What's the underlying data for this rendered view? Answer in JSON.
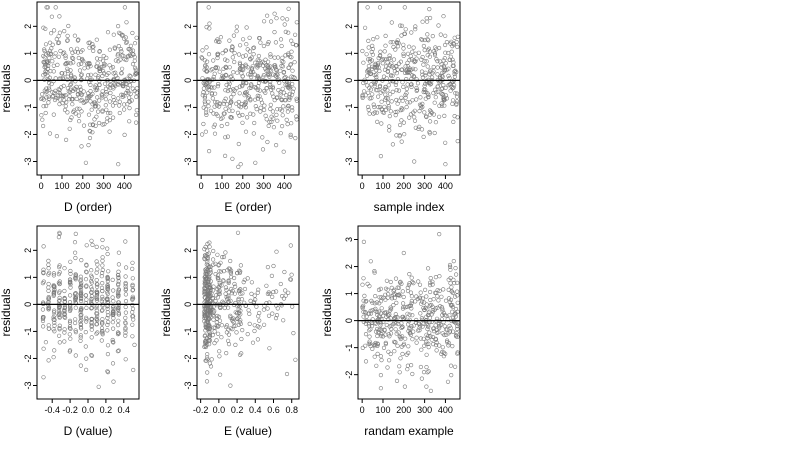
{
  "chart_data": [
    {
      "type": "scatter",
      "title": "",
      "xlabel": "D (order)",
      "ylabel": "residuals",
      "xlim": [
        -20,
        470
      ],
      "ylim": [
        -3.5,
        2.9
      ],
      "xticks": [
        0,
        100,
        200,
        300,
        400
      ],
      "yticks": [
        -3,
        -2,
        -1,
        0,
        1,
        2
      ],
      "xtick_labels": [
        "0",
        "100",
        "200",
        "300",
        "400"
      ],
      "ytick_labels": [
        "-3",
        "-2",
        "-1",
        "0",
        "1",
        "2"
      ],
      "reference_line": 0,
      "n": 460,
      "seed": 11,
      "pattern": "wave",
      "highlight": [
        [
          70,
          2.7
        ],
        [
          410,
          2.15
        ],
        [
          215,
          -3.05
        ],
        [
          370,
          -3.1
        ],
        [
          120,
          -2.2
        ]
      ]
    },
    {
      "type": "scatter",
      "title": "",
      "xlabel": "E (order)",
      "ylabel": "residuals",
      "xlim": [
        -20,
        470
      ],
      "ylim": [
        -3.5,
        2.9
      ],
      "xticks": [
        0,
        100,
        200,
        300,
        400
      ],
      "yticks": [
        -3,
        -2,
        -1,
        0,
        1,
        2
      ],
      "xtick_labels": [
        "0",
        "100",
        "200",
        "300",
        "400"
      ],
      "ytick_labels": [
        "-3",
        "-2",
        "-1",
        "0",
        "1",
        "2"
      ],
      "reference_line": 0,
      "n": 460,
      "seed": 23,
      "pattern": "uniform",
      "highlight": [
        [
          420,
          2.65
        ],
        [
          150,
          -2.9
        ],
        [
          190,
          -3.1
        ],
        [
          260,
          -3.05
        ],
        [
          40,
          2.1
        ]
      ]
    },
    {
      "type": "scatter",
      "title": "",
      "xlabel": "sample index",
      "ylabel": "residuals",
      "xlim": [
        -20,
        470
      ],
      "ylim": [
        -3.5,
        2.9
      ],
      "xticks": [
        0,
        100,
        200,
        300,
        400
      ],
      "yticks": [
        -3,
        -2,
        -1,
        0,
        1,
        2
      ],
      "xtick_labels": [
        "0",
        "100",
        "200",
        "300",
        "400"
      ],
      "ytick_labels": [
        "-3",
        "-2",
        "-1",
        "0",
        "1",
        "2"
      ],
      "reference_line": 0,
      "n": 460,
      "seed": 37,
      "pattern": "uniform",
      "highlight": [
        [
          205,
          2.7
        ],
        [
          400,
          -3.1
        ],
        [
          90,
          -2.8
        ],
        [
          310,
          2.3
        ],
        [
          250,
          -3.0
        ]
      ]
    },
    {
      "type": "scatter",
      "title": "",
      "xlabel": "D (value)",
      "ylabel": "residuals",
      "xlim": [
        -0.57,
        0.57
      ],
      "ylim": [
        -3.5,
        2.9
      ],
      "xticks": [
        -0.4,
        -0.2,
        0.0,
        0.2,
        0.4
      ],
      "yticks": [
        -3,
        -2,
        -1,
        0,
        1,
        2
      ],
      "xtick_labels": [
        "-0.4",
        "-0.2",
        "0.0",
        "0.2",
        "0.4"
      ],
      "ytick_labels": [
        "-3",
        "-2",
        "-1",
        "0",
        "1",
        "2"
      ],
      "reference_line": 0,
      "n": 460,
      "seed": 53,
      "pattern": "columns",
      "highlight": [
        [
          -0.32,
          2.65
        ],
        [
          0.12,
          -3.05
        ],
        [
          0.05,
          2.2
        ],
        [
          -0.47,
          -1.4
        ],
        [
          0.52,
          -1.5
        ]
      ]
    },
    {
      "type": "scatter",
      "title": "",
      "xlabel": "E (value)",
      "ylabel": "residuals",
      "xlim": [
        -0.24,
        0.88
      ],
      "ylim": [
        -3.5,
        2.9
      ],
      "xticks": [
        -0.2,
        0.0,
        0.2,
        0.4,
        0.6,
        0.8
      ],
      "yticks": [
        -3,
        -2,
        -1,
        0,
        1,
        2
      ],
      "xtick_labels": [
        "-0.2",
        "0.0",
        "0.2",
        "0.4",
        "0.6",
        "0.8"
      ],
      "ytick_labels": [
        "-3",
        "-2",
        "-1",
        "0",
        "1",
        "2"
      ],
      "reference_line": 0,
      "n": 460,
      "seed": 71,
      "pattern": "skewed",
      "highlight": [
        [
          0.21,
          2.65
        ],
        [
          0.84,
          -2.05
        ],
        [
          0.72,
          1.2
        ],
        [
          -0.13,
          -2.85
        ],
        [
          0.5,
          -0.05
        ]
      ]
    },
    {
      "type": "scatter",
      "title": "",
      "xlabel": "randam example",
      "ylabel": "residuals",
      "xlim": [
        -20,
        470
      ],
      "ylim": [
        -2.9,
        3.5
      ],
      "xticks": [
        0,
        100,
        200,
        300,
        400
      ],
      "yticks": [
        -2,
        -1,
        0,
        1,
        2,
        3
      ],
      "xtick_labels": [
        "0",
        "100",
        "200",
        "300",
        "400"
      ],
      "ytick_labels": [
        "-2",
        "-1",
        "0",
        "1",
        "2",
        "3"
      ],
      "reference_line": 0,
      "n": 460,
      "seed": 97,
      "pattern": "uniform",
      "highlight": [
        [
          370,
          3.2
        ],
        [
          90,
          -2.5
        ],
        [
          440,
          2.2
        ],
        [
          200,
          2.5
        ],
        [
          330,
          -2.6
        ]
      ]
    }
  ]
}
